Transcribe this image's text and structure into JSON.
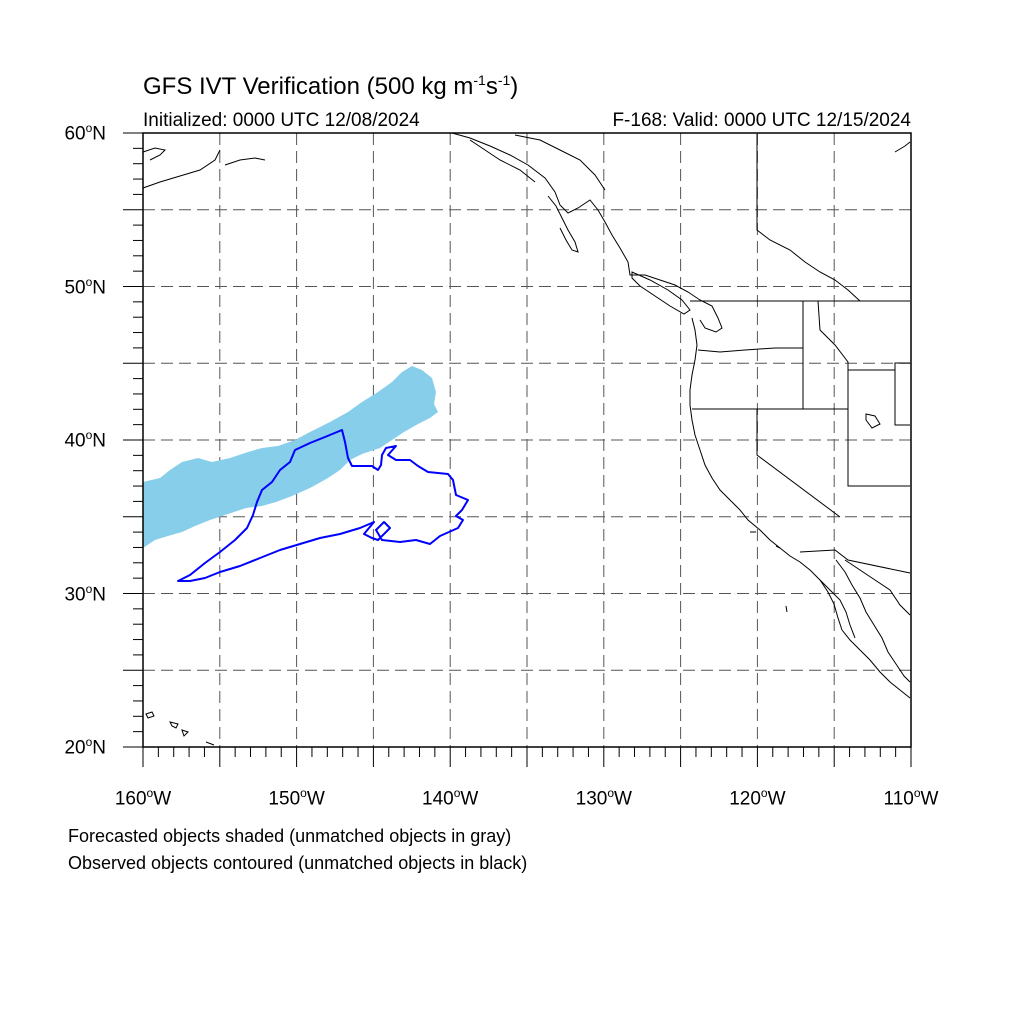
{
  "title": {
    "main": "GFS IVT Verification (500 kg m",
    "exp1": "-1",
    "mid": "s",
    "exp2": "-1",
    "end": ")"
  },
  "subtitle_left": "Initialized: 0000 UTC 12/08/2024",
  "subtitle_right": "F-168: Valid: 0000 UTC 12/15/2024",
  "lat_labels": [
    {
      "num": "60",
      "suffix": "N"
    },
    {
      "num": "50",
      "suffix": "N"
    },
    {
      "num": "40",
      "suffix": "N"
    },
    {
      "num": "30",
      "suffix": "N"
    },
    {
      "num": "20",
      "suffix": "N"
    }
  ],
  "lon_labels": [
    {
      "num": "160",
      "suffix": "W"
    },
    {
      "num": "150",
      "suffix": "W"
    },
    {
      "num": "140",
      "suffix": "W"
    },
    {
      "num": "130",
      "suffix": "W"
    },
    {
      "num": "120",
      "suffix": "W"
    },
    {
      "num": "110",
      "suffix": "W"
    }
  ],
  "degree_symbol": "o",
  "notes": [
    "Forecasted objects shaded (unmatched objects in gray)",
    "Observed objects contoured (unmatched objects in black)"
  ],
  "colors": {
    "forecast_fill": "#87ceeb",
    "observed_contour": "#0000ff",
    "coastline": "#000000",
    "grid": "#555555"
  }
}
